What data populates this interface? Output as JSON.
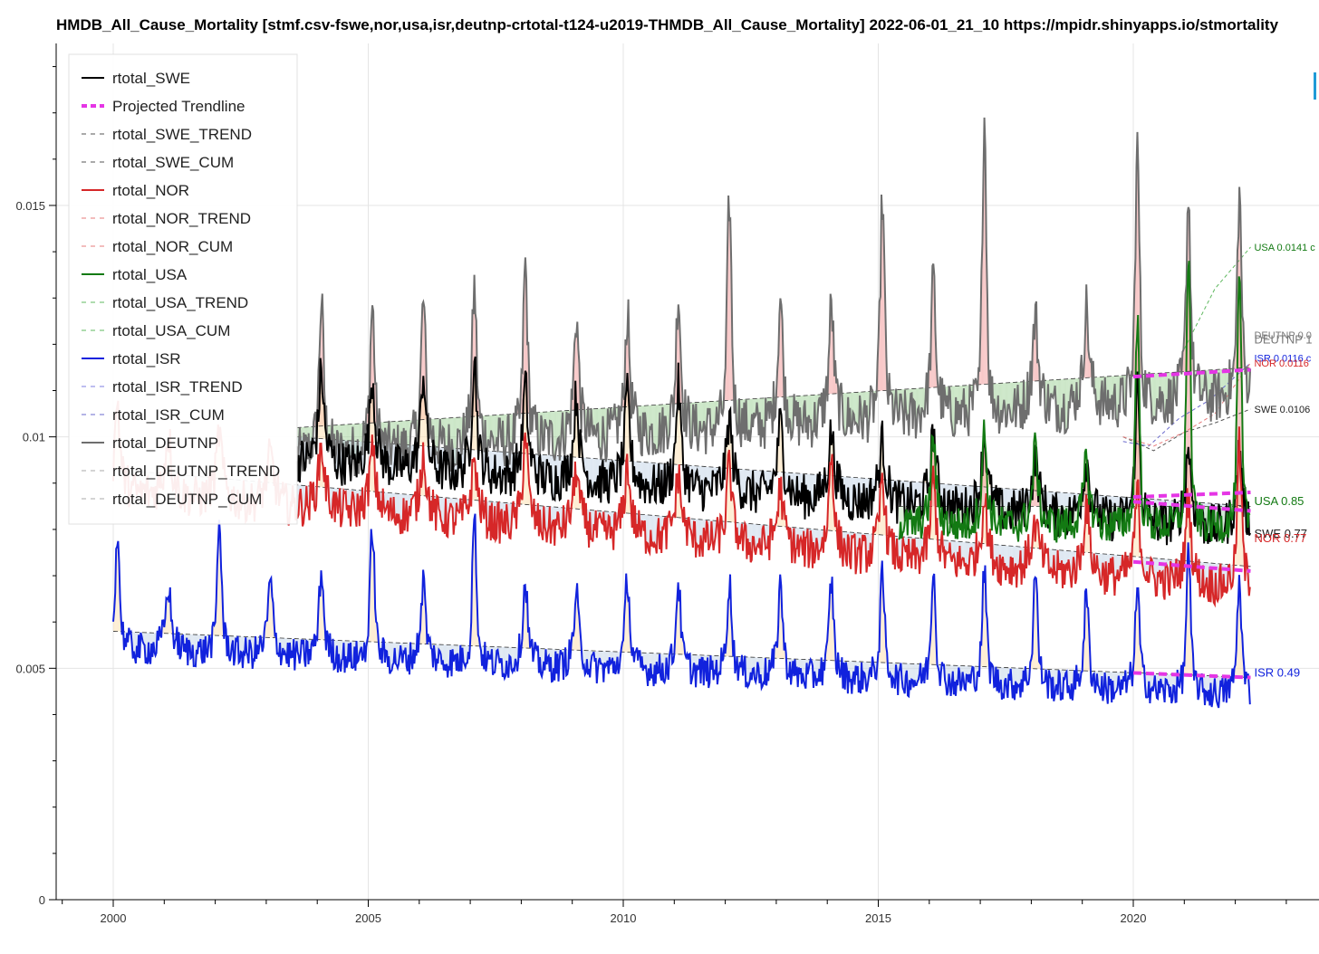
{
  "title": "HMDB_All_Cause_Mortality [stmf.csv-fswe,nor,usa,isr,deutnp-crtotal-t124-u2019-THMDB_All_Cause_Mortality] 2022-06-01_21_10  https://mpidr.shinyapps.io/stmortality",
  "chart_data": {
    "type": "line",
    "xlim": [
      1999.0,
      2023.5
    ],
    "ylim": [
      0,
      0.0185
    ],
    "x_ticks": [
      2000,
      2005,
      2010,
      2015,
      2020
    ],
    "y_ticks": [
      0,
      0.005,
      0.01,
      0.015
    ],
    "y_tick_labels": [
      "0",
      "0.005",
      "0.01",
      "0.015"
    ],
    "grid": true,
    "legend_position": "top-left",
    "legend": [
      {
        "label": "rtotal_SWE",
        "color": "#000000",
        "style": "solid"
      },
      {
        "label": "Projected Trendline",
        "color": "#e535e5",
        "style": "dashed-thick"
      },
      {
        "label": "rtotal_SWE_TREND",
        "color": "#555555",
        "style": "dashed"
      },
      {
        "label": "rtotal_SWE_CUM",
        "color": "#555555",
        "style": "dashed"
      },
      {
        "label": "rtotal_NOR",
        "color": "#d62728",
        "style": "solid"
      },
      {
        "label": "rtotal_NOR_TREND",
        "color": "#e77b7b",
        "style": "dashed"
      },
      {
        "label": "rtotal_NOR_CUM",
        "color": "#e77b7b",
        "style": "dashed"
      },
      {
        "label": "rtotal_USA",
        "color": "#137a13",
        "style": "solid"
      },
      {
        "label": "rtotal_USA_TREND",
        "color": "#5fb85f",
        "style": "dashed"
      },
      {
        "label": "rtotal_USA_CUM",
        "color": "#5fb85f",
        "style": "dashed"
      },
      {
        "label": "rtotal_ISR",
        "color": "#1122dd",
        "style": "solid"
      },
      {
        "label": "rtotal_ISR_TREND",
        "color": "#7d7de0",
        "style": "dashed"
      },
      {
        "label": "rtotal_ISR_CUM",
        "color": "#6a6acc",
        "style": "dashed"
      },
      {
        "label": "rtotal_DEUTNP",
        "color": "#6e6e6e",
        "style": "solid"
      },
      {
        "label": "rtotal_DEUTNP_TREND",
        "color": "#aaaaaa",
        "style": "dashed"
      },
      {
        "label": "rtotal_DEUTNP_CUM",
        "color": "#aaaaaa",
        "style": "dashed"
      }
    ],
    "series": [
      {
        "name": "rtotal_DEUTNP",
        "color": "#6e6e6e",
        "x_range": [
          2003.6,
          2022.3
        ],
        "trend": [
          0.0102,
          0.0115
        ],
        "base": 0.0096,
        "amp": 0.0013,
        "peaks": [
          0.0118,
          0.0128,
          0.0127,
          0.0128,
          0.0131,
          0.0136,
          0.0125,
          0.0125,
          0.013,
          0.015,
          0.0129,
          0.0127,
          0.015,
          0.0133,
          0.0168,
          0.0125,
          0.0127,
          0.0161,
          0.0151
        ]
      },
      {
        "name": "rtotal_SWE",
        "color": "#000000",
        "x_range": [
          2003.6,
          2022.3
        ],
        "trend": [
          0.01,
          0.0085
        ],
        "base": 0.0093,
        "amp": 0.0011,
        "peaks": [
          0.0122,
          0.0113,
          0.0112,
          0.0113,
          0.0116,
          0.011,
          0.0108,
          0.0108,
          0.011,
          0.0103,
          0.0102,
          0.01,
          0.0098,
          0.01,
          0.0099,
          0.0094,
          0.0094,
          0.011,
          0.0097
        ]
      },
      {
        "name": "rtotal_NOR",
        "color": "#d62728",
        "x_range": [
          2000.0,
          2022.3
        ],
        "trend": [
          0.0093,
          0.0072
        ],
        "base": 0.0085,
        "amp": 0.001,
        "peaks": [
          0.0107,
          0.01,
          0.01,
          0.0095,
          0.0097,
          0.0096,
          0.0096,
          0.0094,
          0.01,
          0.0092,
          0.0093,
          0.0091,
          0.0093,
          0.0088,
          0.0096,
          0.0091,
          0.009,
          0.0086,
          0.008,
          0.0085,
          0.0087,
          0.0086,
          0.0097
        ]
      },
      {
        "name": "rtotal_USA",
        "color": "#137a13",
        "x_range": [
          2015.4,
          2022.3
        ],
        "trend": [
          0.0085,
          0.0085
        ],
        "base": 0.0082,
        "amp": 0.0009,
        "peaks": [
          0.0096,
          0.0099,
          0.01,
          0.0097,
          0.0094,
          0.0125,
          0.0138,
          0.0132
        ]
      },
      {
        "name": "rtotal_ISR",
        "color": "#1122dd",
        "x_range": [
          2000.0,
          2022.3
        ],
        "trend": [
          0.0058,
          0.0048
        ],
        "base": 0.0054,
        "amp": 0.0008,
        "peaks": [
          0.0078,
          0.0067,
          0.0081,
          0.0068,
          0.007,
          0.008,
          0.0068,
          0.0082,
          0.0068,
          0.0065,
          0.0069,
          0.0068,
          0.0068,
          0.0068,
          0.0068,
          0.0069,
          0.0071,
          0.007,
          0.007,
          0.0065,
          0.0066,
          0.0074,
          0.0068
        ]
      }
    ],
    "projected_trendlines": [
      {
        "name": "DEUTNP",
        "x": [
          2020.0,
          2022.3
        ],
        "y": [
          0.0113,
          0.01145
        ]
      },
      {
        "name": "USA",
        "x": [
          2020.0,
          2022.3
        ],
        "y": [
          0.0087,
          0.0088
        ]
      },
      {
        "name": "SWE",
        "x": [
          2020.0,
          2022.3
        ],
        "y": [
          0.0086,
          0.0084
        ]
      },
      {
        "name": "NOR",
        "x": [
          2020.0,
          2022.3
        ],
        "y": [
          0.0073,
          0.0071
        ]
      },
      {
        "name": "ISR",
        "x": [
          2020.0,
          2022.3
        ],
        "y": [
          0.0049,
          0.0048
        ]
      }
    ],
    "cum_curves": [
      {
        "name": "USA",
        "color": "#5fb85f",
        "x": [
          2021.0,
          2021.6,
          2022.3
        ],
        "y": [
          0.0119,
          0.0132,
          0.0141
        ]
      },
      {
        "name": "ISR",
        "color": "#6a6acc",
        "x": [
          2019.8,
          2020.3,
          2020.9,
          2021.5,
          2022.3
        ],
        "y": [
          0.0099,
          0.0098,
          0.0104,
          0.0108,
          0.0116
        ]
      },
      {
        "name": "SWE",
        "color": "#555555",
        "x": [
          2019.8,
          2020.4,
          2021.0,
          2021.6,
          2022.3
        ],
        "y": [
          0.01,
          0.0097,
          0.0101,
          0.0103,
          0.0106
        ]
      },
      {
        "name": "NOR",
        "color": "#e77b7b",
        "x": [
          2019.8,
          2020.4,
          2021.0,
          2021.6,
          2022.3
        ],
        "y": [
          0.01,
          0.0098,
          0.0101,
          0.0105,
          0.0116
        ]
      }
    ],
    "annotations": [
      {
        "text": "USA 0.0141 c",
        "x": 2022.3,
        "y": 0.0141,
        "color": "#137a13",
        "size": "small"
      },
      {
        "text": "DEUTNP 0.0",
        "x": 2022.3,
        "y": 0.0122,
        "color": "#777777",
        "size": "small"
      },
      {
        "text": "DEUTNP 1",
        "x": 2022.3,
        "y": 0.0121,
        "color": "#777777",
        "size": "big"
      },
      {
        "text": "ISR 0.0116 c",
        "x": 2022.3,
        "y": 0.0117,
        "color": "#1122dd",
        "size": "small"
      },
      {
        "text": "NOR 0.0116",
        "x": 2022.3,
        "y": 0.0116,
        "color": "#d62728",
        "size": "small"
      },
      {
        "text": "SWE 0.0106",
        "x": 2022.3,
        "y": 0.0106,
        "color": "#222222",
        "size": "small"
      },
      {
        "text": "USA 0.85",
        "x": 2022.3,
        "y": 0.0086,
        "color": "#137a13",
        "size": "big"
      },
      {
        "text": "SWE 0.77",
        "x": 2022.3,
        "y": 0.0079,
        "color": "#222222",
        "size": "big"
      },
      {
        "text": "NOR 0.77",
        "x": 2022.3,
        "y": 0.0078,
        "color": "#d62728",
        "size": "big"
      },
      {
        "text": "ISR 0.49",
        "x": 2022.3,
        "y": 0.0049,
        "color": "#1122dd",
        "size": "big"
      }
    ]
  }
}
